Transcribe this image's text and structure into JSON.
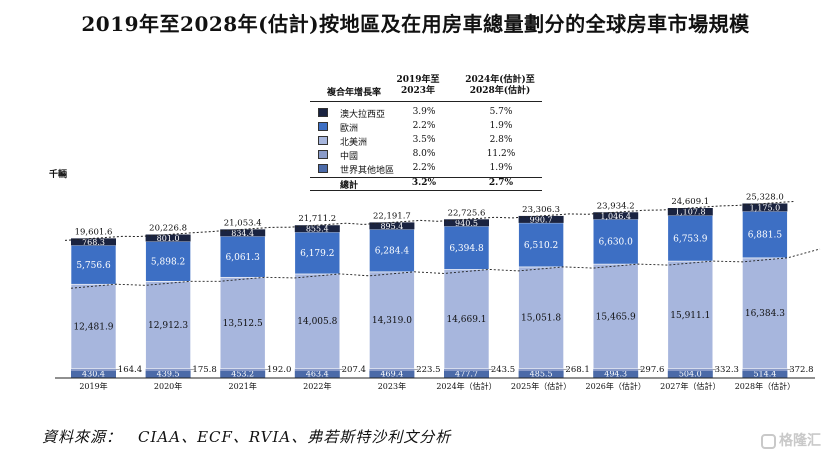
{
  "title": "2019年至2028年(估計)按地區及在用房車總量劃分的全球房車市場規模",
  "unit": "千輛",
  "source": "資料來源：　CIAA、ECF、RVIA、弗若斯特沙利文分析",
  "watermark": "格隆汇",
  "legend": {
    "header_label": "複合年增長率",
    "col1": "2019年至\n2023年",
    "col2": "2024年(估計)至\n2028年(估計)",
    "rows": [
      {
        "name": "澳大拉西亞",
        "cagr1": "3.9%",
        "cagr2": "5.7%",
        "color": "#1a2340"
      },
      {
        "name": "歐洲",
        "cagr1": "2.2%",
        "cagr2": "1.9%",
        "color": "#3d6fc4"
      },
      {
        "name": "北美洲",
        "cagr1": "3.5%",
        "cagr2": "2.8%",
        "color": "#a7b6dd"
      },
      {
        "name": "中國",
        "cagr1": "8.0%",
        "cagr2": "11.2%",
        "color": "#8a9bc9"
      },
      {
        "name": "世界其他地區",
        "cagr1": "2.2%",
        "cagr2": "1.9%",
        "color": "#4b6aa8"
      }
    ],
    "total": {
      "name": "總計",
      "cagr1": "3.2%",
      "cagr2": "2.7%"
    }
  },
  "chart_data": {
    "type": "bar",
    "stacked": true,
    "categories": [
      "2019年",
      "2020年",
      "2021年",
      "2022年",
      "2023年",
      "2024年（估計）",
      "2025年（估計）",
      "2026年（估計）",
      "2027年（估計）",
      "2028年（估計）"
    ],
    "series": [
      {
        "name": "世界其他地區",
        "values": [
          430.4,
          439.5,
          453.2,
          463.4,
          469.4,
          477.7,
          485.5,
          494.3,
          504.0,
          514.4
        ],
        "labels": [
          "430.4",
          "439.5",
          "453.2",
          "463.4",
          "469.4",
          "477.7",
          "485.5",
          "494.3",
          "504.0",
          "514.4"
        ],
        "color": "#4b6aa8"
      },
      {
        "name": "中國",
        "values": [
          164.4,
          175.8,
          192.0,
          207.4,
          223.5,
          243.5,
          268.1,
          297.6,
          332.3,
          372.8
        ],
        "labels": [
          "164.4",
          "175.8",
          "192.0",
          "207.4",
          "223.5",
          "243.5",
          "268.1",
          "297.6",
          "332.3",
          "372.8"
        ],
        "color": "#8a9bc9"
      },
      {
        "name": "北美洲",
        "values": [
          12481.9,
          12912.3,
          13512.5,
          14005.8,
          14319.0,
          14669.1,
          15051.8,
          15465.9,
          15911.1,
          16384.3
        ],
        "labels": [
          "12,481.9",
          "12,912.3",
          "13,512.5",
          "14,005.8",
          "14,319.0",
          "14,669.1",
          "15,051.8",
          "15,465.9",
          "15,911.1",
          "16,384.3"
        ],
        "color": "#a7b6dd"
      },
      {
        "name": "歐洲",
        "values": [
          5756.6,
          5898.2,
          6061.3,
          6179.2,
          6284.4,
          6394.8,
          6510.2,
          6630.0,
          6753.9,
          6881.5
        ],
        "labels": [
          "5,756.6",
          "5,898.2",
          "6,061.3",
          "6,179.2",
          "6,284.4",
          "6,394.8",
          "6,510.2",
          "6,630.0",
          "6,753.9",
          "6,881.5"
        ],
        "color": "#3d6fc4"
      },
      {
        "name": "澳大拉西亞",
        "values": [
          768.3,
          801.0,
          834.4,
          855.4,
          895.4,
          940.5,
          990.7,
          1046.4,
          1107.8,
          1175.0
        ],
        "labels": [
          "768.3",
          "801.0",
          "834.4",
          "855.4",
          "895.4",
          "940.5",
          "990.7",
          "1,046.4",
          "1,107.8",
          "1,175.0"
        ],
        "color": "#1a2340"
      }
    ],
    "totals": [
      19601.6,
      20226.8,
      21053.4,
      21711.2,
      22191.7,
      22725.6,
      23306.3,
      23934.2,
      24609.1,
      25328.0
    ],
    "total_labels": [
      "19,601.6",
      "20,226.8",
      "21,053.4",
      "21,711.2",
      "22,191.7",
      "22,725.6",
      "23,306.3",
      "23,934.2",
      "24,609.1",
      "25,328.0"
    ],
    "ylabel": "千輛",
    "ylim": [
      0,
      27000
    ],
    "grid": false,
    "legend_position": "top"
  }
}
